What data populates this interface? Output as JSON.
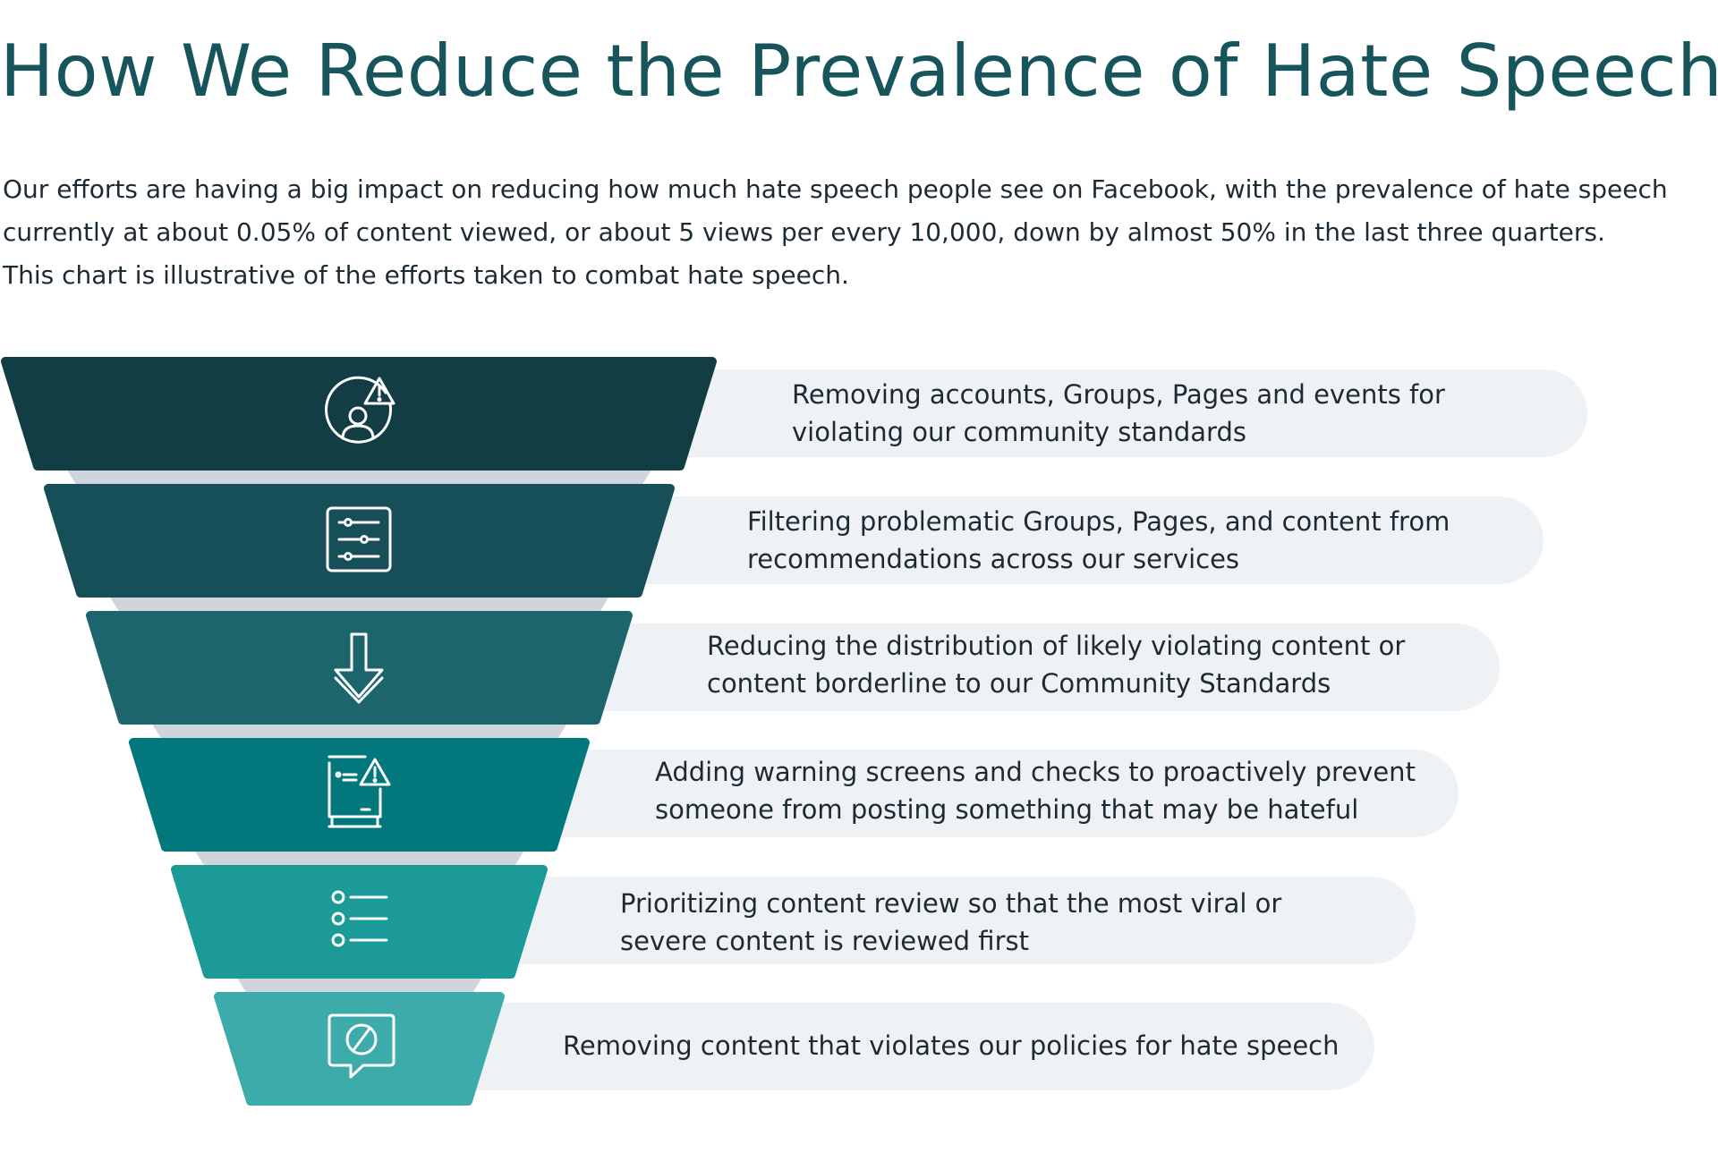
{
  "title": "How We Reduce the Prevalence of Hate Speech",
  "intro": "Our efforts are having a big impact on reducing how much hate speech people see on Facebook, with the prevalence of hate speech\ncurrently at about 0.05% of content viewed, or about 5 views per every 10,000, down by almost 50% in the last three quarters.\nThis chart is illustrative of the efforts taken to combat hate speech.",
  "funnel": {
    "levels": [
      {
        "icon": "account-warning-icon",
        "color": "#133d45",
        "text": "Removing accounts, Groups, Pages and events for\nviolating our community standards"
      },
      {
        "icon": "filter-settings-icon",
        "color": "#174f58",
        "text": "Filtering problematic Groups, Pages, and content from\nrecommendations across our services"
      },
      {
        "icon": "down-arrow-icon",
        "color": "#1c656d",
        "text": "Reducing the distribution of likely violating content or\ncontent borderline to our Community Standards"
      },
      {
        "icon": "warning-screen-icon",
        "color": "#02777c",
        "text": "Adding warning screens and checks to proactively prevent\nsomeone from posting something that may be hateful"
      },
      {
        "icon": "priority-list-icon",
        "color": "#1b9a98",
        "text": "Prioritizing content review so that the most viral or\nsevere content is reviewed first"
      },
      {
        "icon": "blocked-message-icon",
        "color": "#3eabab",
        "text": "Removing content that violates our policies for hate speech"
      }
    ],
    "connector_color": "#d0d5dd",
    "pill_color": "#eff2f5"
  }
}
